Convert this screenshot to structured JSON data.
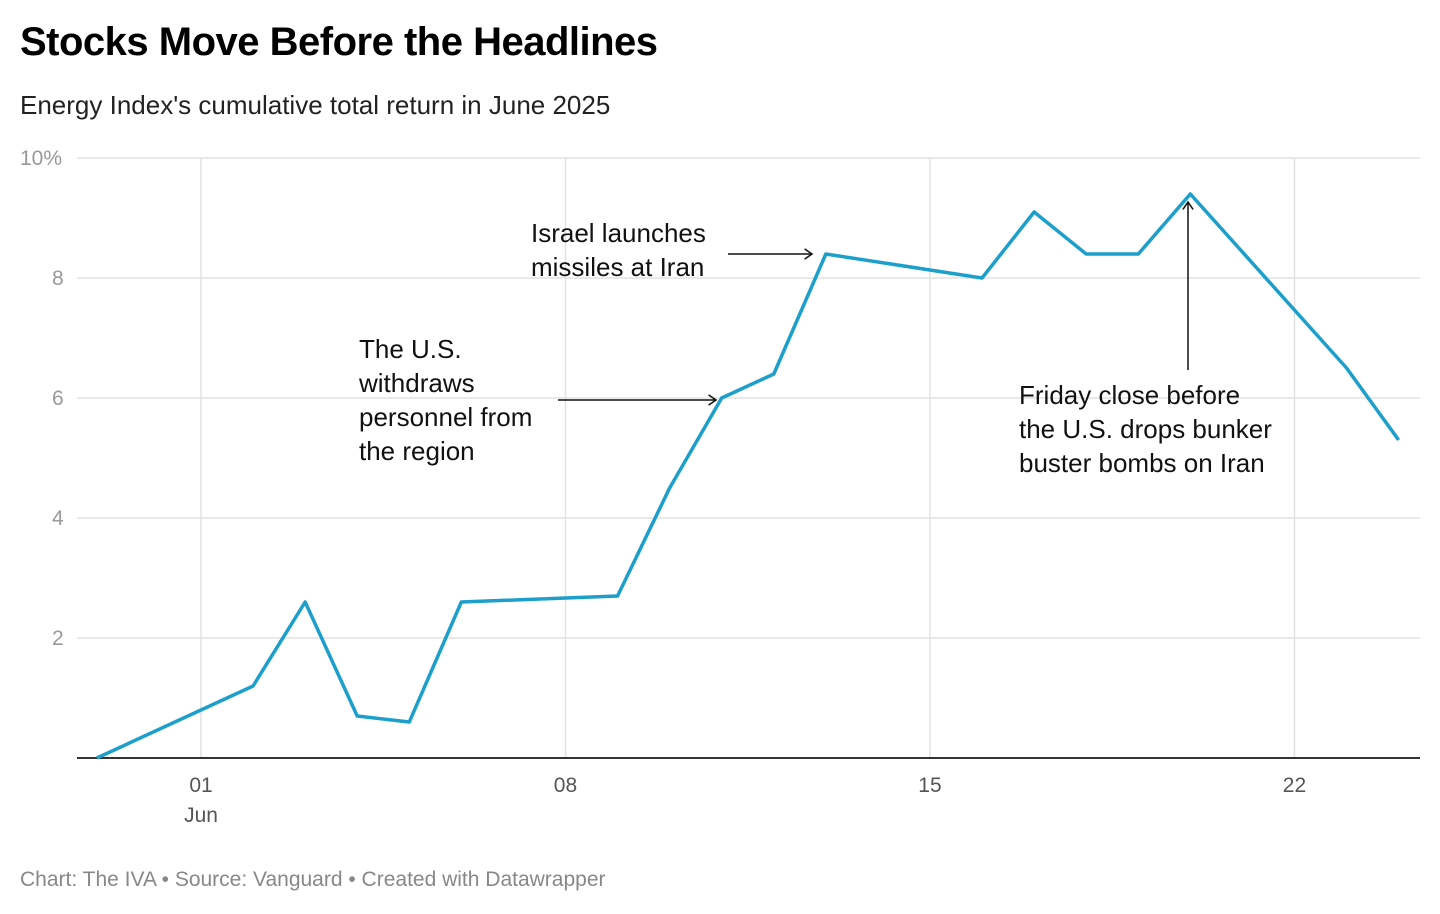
{
  "chart_data": {
    "type": "line",
    "title": "Stocks Move Before the Headlines",
    "subtitle": "Energy Index's cumulative total return in June 2025",
    "footer": "Chart: The IVA • Source: Vanguard • Created with Datawrapper",
    "color": "#1d9fcc",
    "grid": true,
    "ylim": [
      0,
      10
    ],
    "y_ticks": [
      {
        "v": 2,
        "label": "2"
      },
      {
        "v": 4,
        "label": "4"
      },
      {
        "v": 6,
        "label": "6"
      },
      {
        "v": 8,
        "label": "8"
      },
      {
        "v": 10,
        "label": "10%"
      }
    ],
    "x_ticks": [
      {
        "date": "2025-06-01",
        "label": "01",
        "sublabel": "Jun"
      },
      {
        "date": "2025-06-08",
        "label": "08"
      },
      {
        "date": "2025-06-15",
        "label": "15"
      },
      {
        "date": "2025-06-22",
        "label": "22"
      }
    ],
    "x_range": [
      "2025-05-28",
      "2025-06-25"
    ],
    "points": [
      {
        "date": "2025-05-30",
        "value": 0
      },
      {
        "date": "2025-06-02",
        "value": 1.2
      },
      {
        "date": "2025-06-03",
        "value": 2.6
      },
      {
        "date": "2025-06-04",
        "value": 0.7
      },
      {
        "date": "2025-06-05",
        "value": 0.6
      },
      {
        "date": "2025-06-06",
        "value": 2.6
      },
      {
        "date": "2025-06-09",
        "value": 2.7
      },
      {
        "date": "2025-06-10",
        "value": 4.5
      },
      {
        "date": "2025-06-11",
        "value": 6.0
      },
      {
        "date": "2025-06-12",
        "value": 6.4
      },
      {
        "date": "2025-06-13",
        "value": 8.4
      },
      {
        "date": "2025-06-16",
        "value": 8.0
      },
      {
        "date": "2025-06-17",
        "value": 9.1
      },
      {
        "date": "2025-06-18",
        "value": 8.4
      },
      {
        "date": "2025-06-19",
        "value": 8.4
      },
      {
        "date": "2025-06-20",
        "value": 9.4
      },
      {
        "date": "2025-06-23",
        "value": 6.5
      },
      {
        "date": "2025-06-24",
        "value": 5.3
      }
    ],
    "annotations": [
      {
        "lines": [
          "The U.S.",
          "withdraws",
          "personnel from",
          "the region"
        ],
        "date": "2025-06-11",
        "value": 6.0
      },
      {
        "lines": [
          "Israel launches",
          "missiles at Iran"
        ],
        "date": "2025-06-13",
        "value": 8.4
      },
      {
        "lines": [
          "Friday close before",
          "the U.S. drops bunker",
          "buster bombs on Iran"
        ],
        "date": "2025-06-20",
        "value": 9.4
      }
    ]
  }
}
